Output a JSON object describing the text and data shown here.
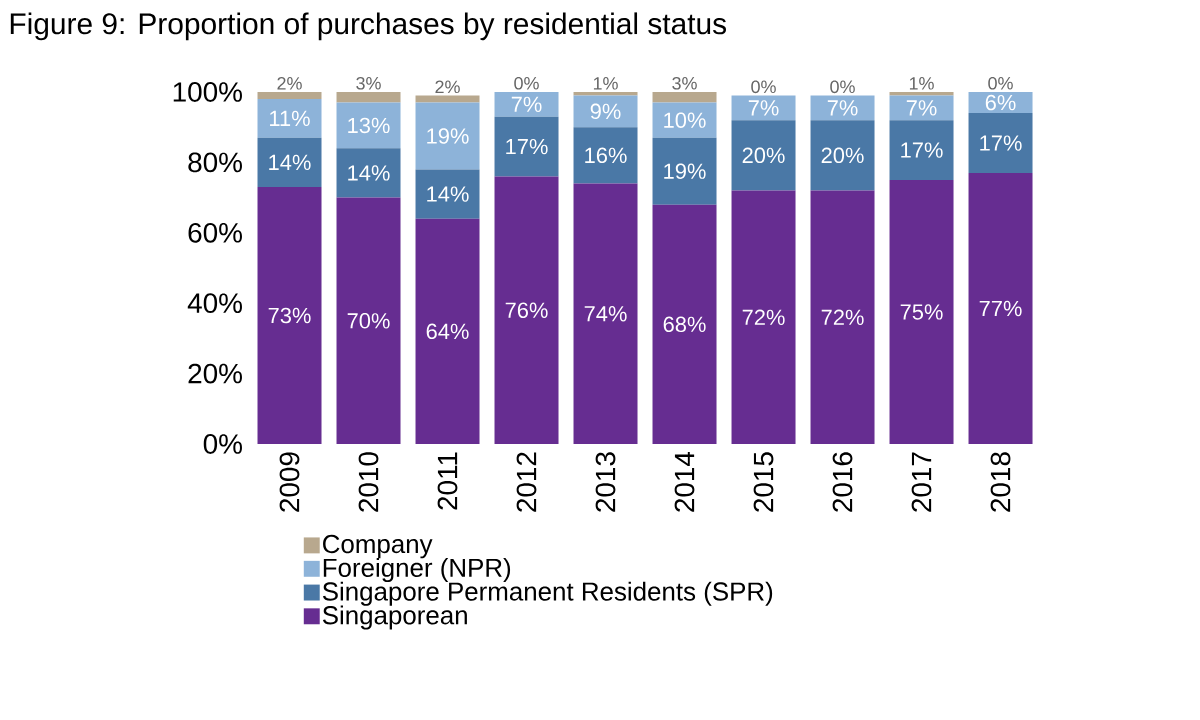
{
  "chart_data": {
    "type": "bar",
    "stacked": true,
    "title": "Figure 9: Proportion of purchases by residential status",
    "categories": [
      "2009",
      "2010",
      "2011",
      "2012",
      "2013",
      "2014",
      "2015",
      "2016",
      "2017",
      "2018"
    ],
    "series": [
      {
        "name": "Singaporean",
        "color": "#662d91",
        "values": [
          73,
          70,
          64,
          76,
          74,
          68,
          72,
          72,
          75,
          77
        ],
        "value_labels": [
          "73%",
          "70%",
          "64%",
          "76%",
          "74%",
          "68%",
          "72%",
          "72%",
          "75%",
          "77%"
        ]
      },
      {
        "name": "Singapore Permanent Residents (SPR)",
        "color": "#4a78a6",
        "values": [
          14,
          14,
          14,
          17,
          16,
          19,
          20,
          20,
          17,
          17
        ],
        "value_labels": [
          "14%",
          "14%",
          "14%",
          "17%",
          "16%",
          "19%",
          "20%",
          "20%",
          "17%",
          "17%"
        ]
      },
      {
        "name": "Foreigner (NPR)",
        "color": "#8db3d9",
        "values": [
          11,
          13,
          19,
          7,
          9,
          10,
          7,
          7,
          7,
          6
        ],
        "value_labels": [
          "11%",
          "13%",
          "19%",
          "7%",
          "9%",
          "10%",
          "7%",
          "7%",
          "7%",
          "6%"
        ]
      },
      {
        "name": "Company",
        "color": "#b8a88e",
        "values": [
          2,
          3,
          2,
          0,
          1,
          3,
          0,
          0,
          1,
          0
        ],
        "value_labels": [
          "2%",
          "3%",
          "2%",
          "0%",
          "1%",
          "3%",
          "0%",
          "0%",
          "1%",
          "0%"
        ]
      }
    ],
    "ylim": [
      0,
      100
    ],
    "yticks": [
      {
        "value": 0,
        "label": "0%"
      },
      {
        "value": 20,
        "label": "20%"
      },
      {
        "value": 40,
        "label": "40%"
      },
      {
        "value": 60,
        "label": "60%"
      },
      {
        "value": 80,
        "label": "80%"
      },
      {
        "value": 100,
        "label": "100%"
      }
    ],
    "grid": false,
    "legend": "bottom"
  }
}
